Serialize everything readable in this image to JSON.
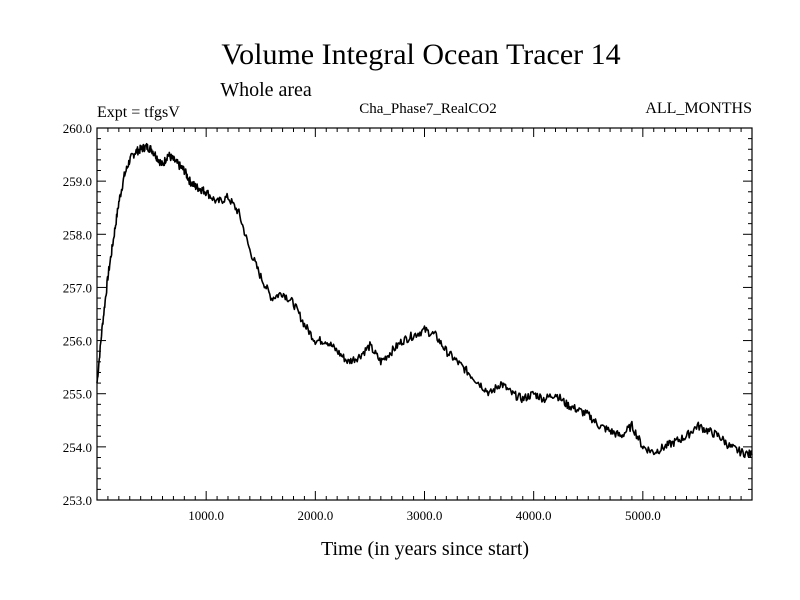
{
  "chart_data": {
    "type": "line",
    "title": "Volume Integral Ocean Tracer 14",
    "subtitle": "Whole area",
    "left_label": "Expt = tfgsV",
    "center_label": "Cha_Phase7_RealCO2",
    "right_label": "ALL_MONTHS",
    "xlabel": "Time (in years since start)",
    "ylabel": "",
    "xlim": [
      0,
      6000
    ],
    "ylim": [
      253.0,
      260.0
    ],
    "x_ticks": [
      1000,
      2000,
      3000,
      4000,
      5000
    ],
    "x_tick_labels": [
      "1000.0",
      "2000.0",
      "3000.0",
      "4000.0",
      "5000.0"
    ],
    "y_ticks": [
      253,
      254,
      255,
      256,
      257,
      258,
      259,
      260
    ],
    "y_tick_labels": [
      "253.0",
      "254.0",
      "255.0",
      "256.0",
      "257.0",
      "258.0",
      "259.0",
      "260.0"
    ],
    "series": [
      {
        "name": "Volume Integral Ocean Tracer 14",
        "color": "#000000",
        "x": [
          0,
          50,
          100,
          150,
          200,
          250,
          300,
          350,
          400,
          450,
          500,
          550,
          600,
          650,
          700,
          750,
          800,
          850,
          900,
          950,
          1000,
          1100,
          1200,
          1300,
          1400,
          1500,
          1600,
          1700,
          1800,
          1900,
          2000,
          2100,
          2200,
          2300,
          2400,
          2500,
          2600,
          2700,
          2800,
          2900,
          3000,
          3100,
          3200,
          3300,
          3400,
          3500,
          3600,
          3700,
          3800,
          3900,
          4000,
          4100,
          4200,
          4300,
          4400,
          4500,
          4600,
          4700,
          4800,
          4900,
          5000,
          5100,
          5200,
          5300,
          5400,
          5500,
          5600,
          5700,
          5800,
          5900,
          6000
        ],
        "y": [
          255.2,
          256.3,
          257.2,
          257.9,
          258.6,
          259.1,
          259.4,
          259.55,
          259.6,
          259.65,
          259.6,
          259.45,
          259.3,
          259.5,
          259.4,
          259.3,
          259.2,
          259.0,
          258.9,
          258.85,
          258.8,
          258.6,
          258.7,
          258.4,
          257.7,
          257.2,
          256.8,
          256.9,
          256.7,
          256.3,
          256.0,
          256.0,
          255.8,
          255.6,
          255.7,
          255.9,
          255.6,
          255.8,
          256.0,
          256.1,
          256.2,
          256.1,
          255.8,
          255.6,
          255.4,
          255.2,
          255.0,
          255.2,
          255.0,
          254.9,
          255.0,
          254.9,
          255.0,
          254.8,
          254.7,
          254.6,
          254.4,
          254.3,
          254.2,
          254.4,
          254.0,
          253.9,
          254.0,
          254.1,
          254.2,
          254.4,
          254.3,
          254.2,
          254.0,
          253.9,
          253.85
        ]
      }
    ]
  }
}
